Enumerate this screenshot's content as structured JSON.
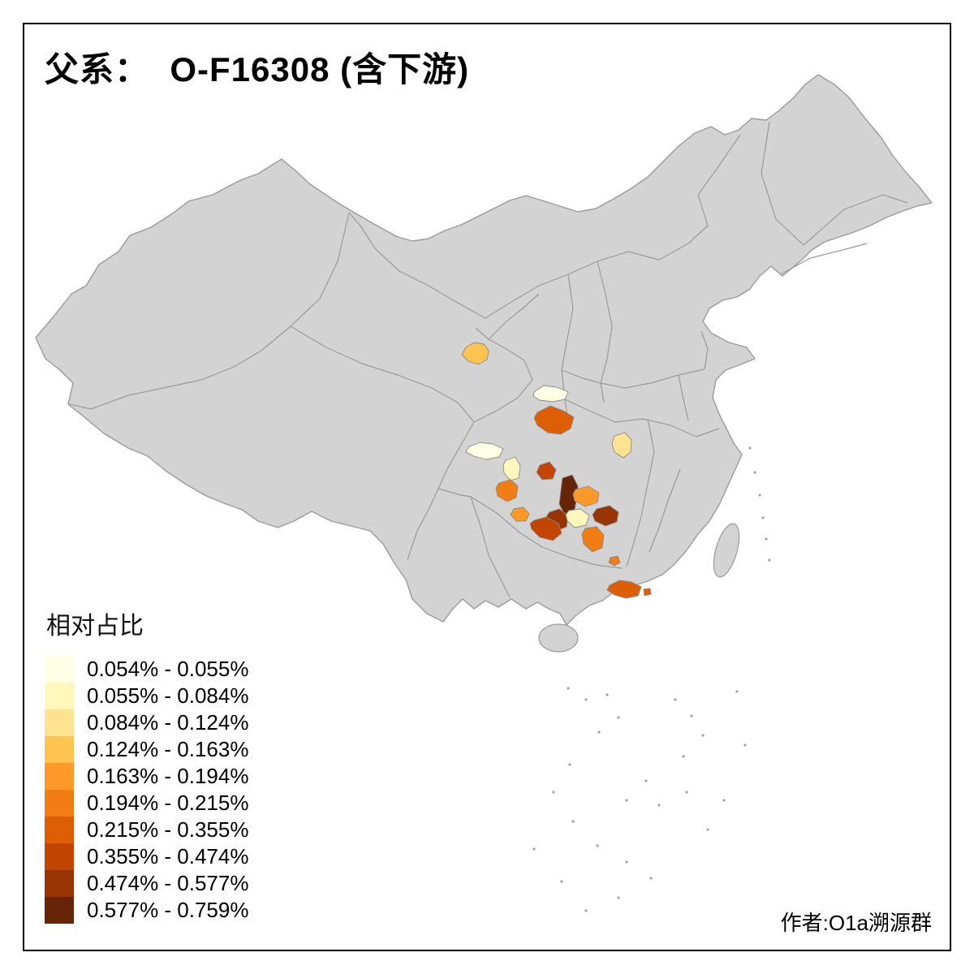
{
  "title": "父系：  O-F16308 (含下游)",
  "credit": "作者:O1a溯源群",
  "legend": {
    "title": "相对占比",
    "items": [
      {
        "label": "0.054% - 0.055%",
        "color": "#FFFFE5"
      },
      {
        "label": "0.055% - 0.084%",
        "color": "#FFF7BC"
      },
      {
        "label": "0.084% - 0.124%",
        "color": "#FEE391"
      },
      {
        "label": "0.124% - 0.163%",
        "color": "#FEC44F"
      },
      {
        "label": "0.163% - 0.194%",
        "color": "#FE9929"
      },
      {
        "label": "0.194% - 0.215%",
        "color": "#F17D14"
      },
      {
        "label": "0.215% - 0.355%",
        "color": "#DE5E06"
      },
      {
        "label": "0.355% - 0.474%",
        "color": "#C34502"
      },
      {
        "label": "0.474% - 0.577%",
        "color": "#993404"
      },
      {
        "label": "0.577% - 0.759%",
        "color": "#662506"
      }
    ]
  },
  "map": {
    "land_color": "#d3d3d3",
    "border_color": "#9b9b9b",
    "region_stroke_color": "#8a8a8a",
    "sea_speck_color": "#a3a3a3",
    "regions": [
      {
        "class": 3
      },
      {
        "class": 0
      },
      {
        "class": 6
      },
      {
        "class": 2
      },
      {
        "class": 0
      },
      {
        "class": 1
      },
      {
        "class": 5
      },
      {
        "class": 7
      },
      {
        "class": 9
      },
      {
        "class": 8
      },
      {
        "class": 4
      },
      {
        "class": 1
      },
      {
        "class": 8
      },
      {
        "class": 7
      },
      {
        "class": 4
      },
      {
        "class": 5
      },
      {
        "class": 5
      },
      {
        "class": 6
      },
      {
        "class": 6
      }
    ]
  }
}
